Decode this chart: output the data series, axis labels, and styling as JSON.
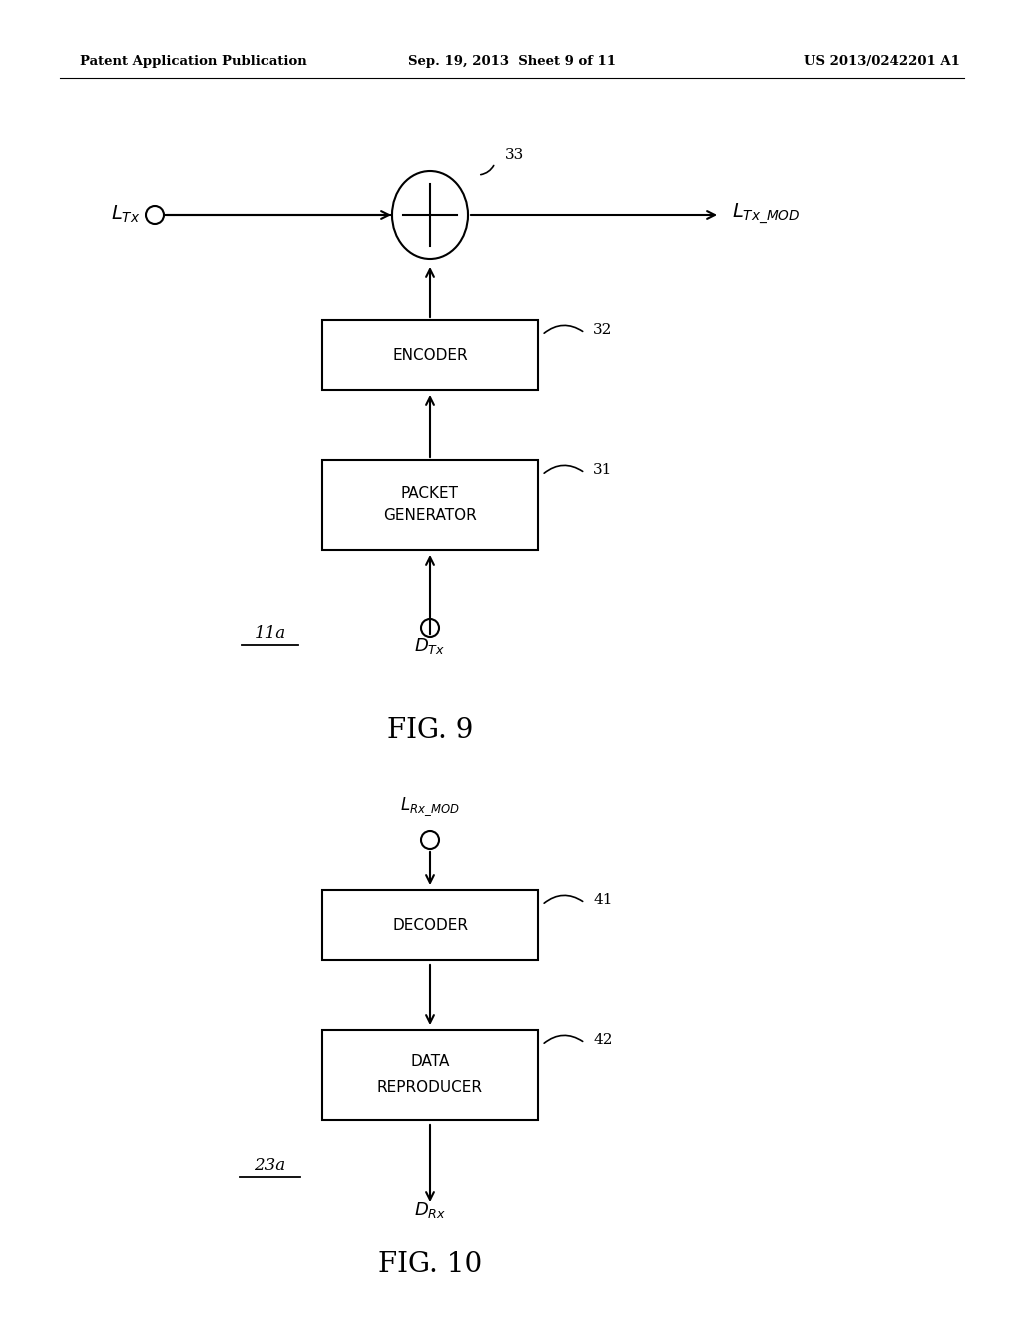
{
  "bg_color": "#ffffff",
  "header_left": "Patent Application Publication",
  "header_center": "Sep. 19, 2013  Sheet 9 of 11",
  "header_right": "US 2013/0242201 A1",
  "fig9_label": "FIG. 9",
  "fig10_label": "FIG. 10",
  "fig9": {
    "ltx_label": "$L_{Tx}$",
    "ltx_mod_label": "$L_{Tx\\_MOD}$",
    "circle_label": "33",
    "encoder_label": "ENCODER",
    "encoder_ref": "32",
    "packet_gen_line1": "PACKET",
    "packet_gen_line2": "GENERATOR",
    "packet_gen_ref": "31",
    "dtx_label": "$D_{Tx}$",
    "block_ref_label": "11a"
  },
  "fig10": {
    "lrx_mod_label": "$L_{Rx\\_MOD}$",
    "decoder_label": "DECODER",
    "decoder_ref": "41",
    "data_repr_line1": "DATA",
    "data_repr_line2": "REPRODUCER",
    "data_repr_ref": "42",
    "drx_label": "$D_{Rx}$",
    "block_ref_label": "23a"
  }
}
